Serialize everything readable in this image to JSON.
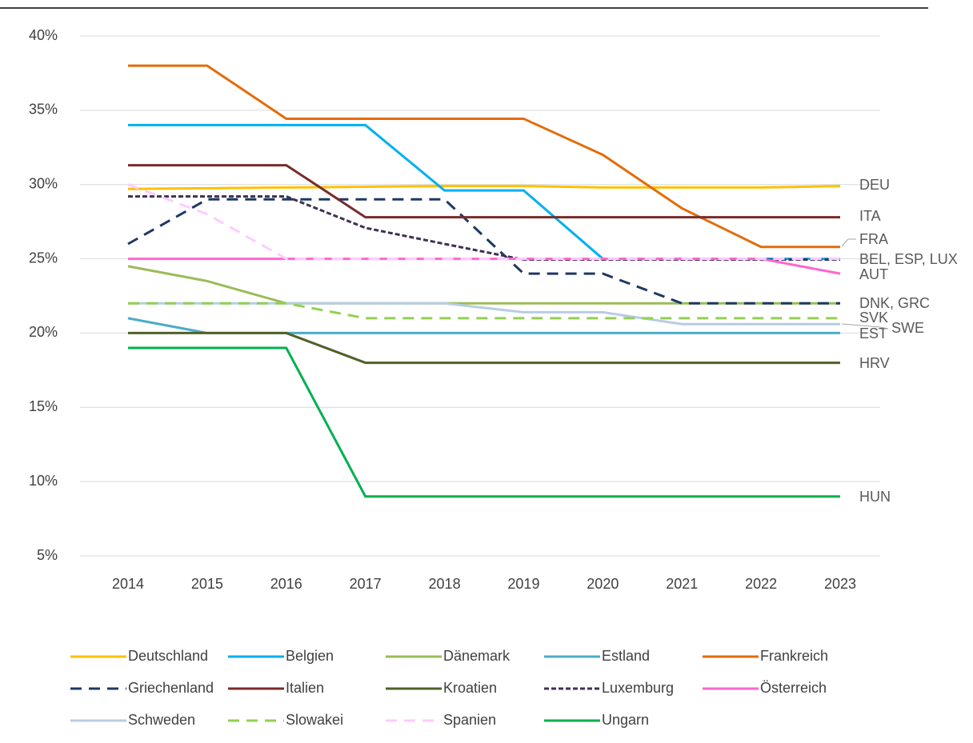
{
  "chart_data": {
    "type": "line",
    "x": [
      2014,
      2015,
      2016,
      2017,
      2018,
      2019,
      2020,
      2021,
      2022,
      2023
    ],
    "ylim": [
      5,
      40
    ],
    "yticks": [
      {
        "value": 5,
        "label": "5%"
      },
      {
        "value": 10,
        "label": "10%"
      },
      {
        "value": 15,
        "label": "15%"
      },
      {
        "value": 20,
        "label": "20%"
      },
      {
        "value": 25,
        "label": "25%"
      },
      {
        "value": 30,
        "label": "30%"
      },
      {
        "value": 35,
        "label": "35%"
      },
      {
        "value": 40,
        "label": "40%"
      }
    ],
    "grid": true,
    "legend": "bottom",
    "series": [
      {
        "name": "Deutschland",
        "color": "#FFC000",
        "style": "solid",
        "values": [
          29.7,
          29.75,
          29.8,
          29.85,
          29.9,
          29.9,
          29.8,
          29.8,
          29.8,
          29.9
        ]
      },
      {
        "name": "Belgien",
        "color": "#00B0F0",
        "style": "solid",
        "values": [
          34,
          34,
          34,
          34,
          29.6,
          29.6,
          25,
          25,
          25,
          25
        ]
      },
      {
        "name": "Dänemark",
        "color": "#9BBB59",
        "style": "solid",
        "values": [
          24.5,
          23.5,
          22,
          22,
          22,
          22,
          22,
          22,
          22,
          22
        ]
      },
      {
        "name": "Estland",
        "color": "#4BACC6",
        "style": "solid",
        "values": [
          21,
          20,
          20,
          20,
          20,
          20,
          20,
          20,
          20,
          20
        ]
      },
      {
        "name": "Frankreich",
        "color": "#E36C09",
        "style": "solid",
        "values": [
          38,
          38,
          34.43,
          34.43,
          34.43,
          34.43,
          32,
          28.4,
          25.8,
          25.8
        ]
      },
      {
        "name": "Griechenland",
        "color": "#1F3864",
        "style": "dashed",
        "values": [
          26,
          29,
          29,
          29,
          29,
          24,
          24,
          22,
          22,
          22
        ]
      },
      {
        "name": "Italien",
        "color": "#772C2A",
        "style": "solid",
        "values": [
          31.3,
          31.3,
          31.3,
          27.8,
          27.8,
          27.8,
          27.8,
          27.8,
          27.8,
          27.8
        ]
      },
      {
        "name": "Kroatien",
        "color": "#4F6228",
        "style": "solid",
        "values": [
          20,
          20,
          20,
          18,
          18,
          18,
          18,
          18,
          18,
          18
        ]
      },
      {
        "name": "Luxemburg",
        "color": "#3F3151",
        "style": "dotted",
        "values": [
          29.2,
          29.2,
          29.2,
          27.08,
          26,
          24.94,
          24.94,
          24.94,
          24.94,
          24.94
        ]
      },
      {
        "name": "Österreich",
        "color": "#FF66CC",
        "style": "solid",
        "values": [
          25,
          25,
          25,
          25,
          25,
          25,
          25,
          25,
          25,
          24
        ]
      },
      {
        "name": "Schweden",
        "color": "#B8CCE4",
        "style": "solid",
        "values": [
          22,
          22,
          22,
          22,
          22,
          21.4,
          21.4,
          20.6,
          20.6,
          20.6
        ]
      },
      {
        "name": "Slowakei",
        "color": "#92D050",
        "style": "dashed",
        "values": [
          22,
          22,
          22,
          21,
          21,
          21,
          21,
          21,
          21,
          21
        ]
      },
      {
        "name": "Spanien",
        "color": "#FFCCFF",
        "style": "dashed",
        "values": [
          30,
          28,
          25,
          25,
          25,
          25,
          25,
          25,
          25,
          25
        ]
      },
      {
        "name": "Ungarn",
        "color": "#00B050",
        "style": "solid",
        "values": [
          19,
          19,
          19,
          9,
          9,
          9,
          9,
          9,
          9,
          9
        ]
      }
    ],
    "annotations": [
      "DEU",
      "ITA",
      "FRA",
      "BEL, ESP, LUX",
      "AUT",
      "DNK, GRC",
      "SVK",
      "SWE",
      "EST",
      "HRV",
      "HUN"
    ]
  }
}
